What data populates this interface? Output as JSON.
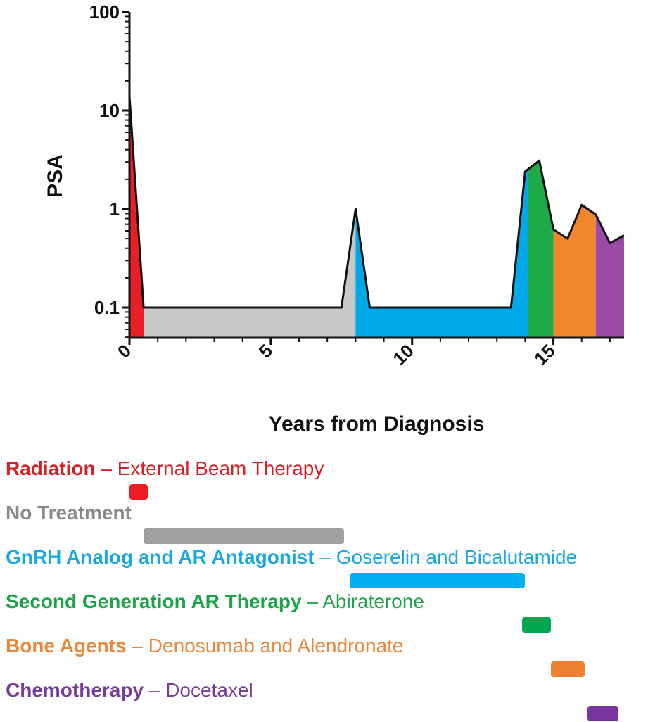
{
  "chart_data": {
    "type": "area",
    "title": "",
    "xlabel": "Years from Diagnosis",
    "ylabel": "PSA",
    "yscale": "log",
    "xlim": [
      0,
      17.5
    ],
    "ylim": [
      0.05,
      100
    ],
    "xticks": [
      0,
      5,
      10,
      15
    ],
    "xtick_labels": [
      "0",
      "5",
      "10",
      "15"
    ],
    "yticks": [
      0.1,
      1,
      10,
      100
    ],
    "ytick_labels": [
      "0.1",
      "1",
      "10",
      "100"
    ],
    "grid": false,
    "psa_series": [
      [
        0,
        14
      ],
      [
        0.5,
        0.1
      ],
      [
        7.5,
        0.1
      ],
      [
        8,
        1.0
      ],
      [
        8.5,
        0.1
      ],
      [
        13.5,
        0.1
      ],
      [
        14,
        2.4
      ],
      [
        14.5,
        3.1
      ],
      [
        15,
        0.62
      ],
      [
        15.5,
        0.5
      ],
      [
        16,
        1.1
      ],
      [
        16.5,
        0.88
      ],
      [
        17,
        0.45
      ],
      [
        17.5,
        0.54
      ]
    ],
    "segments": [
      {
        "name": "Radiation",
        "color": "#e62026",
        "x": [
          0,
          0.5
        ]
      },
      {
        "name": "No Treatment",
        "color": "#c8c8c8",
        "x": [
          0.5,
          8
        ]
      },
      {
        "name": "GnRH Analog and AR Antagonist",
        "color": "#00a8e8",
        "x": [
          8,
          14.1
        ]
      },
      {
        "name": "Second Generation AR Therapy",
        "color": "#1faa4a",
        "x": [
          14.1,
          15
        ]
      },
      {
        "name": "Bone Agents",
        "color": "#f0862e",
        "x": [
          15,
          16.5
        ]
      },
      {
        "name": "Chemotherapy",
        "color": "#9b4aa6",
        "x": [
          16.5,
          17.5
        ]
      }
    ]
  },
  "legend": [
    {
      "name": "Radiation",
      "sep": " – ",
      "detail": "External Beam Therapy",
      "color": "#d42027",
      "bar_color": "#ee1c24",
      "start": 0.0,
      "end": 0.5
    },
    {
      "name": "No Treatment",
      "sep": "",
      "detail": "",
      "color": "#8a8a8a",
      "bar_color": "#a0a0a0",
      "start": 0.5,
      "end": 7.6
    },
    {
      "name": "GnRH Analog and AR Antagonist",
      "sep": " – ",
      "detail": "Goserelin and Bicalutamide",
      "color": "#1ba7e0",
      "bar_color": "#00b0f0",
      "start": 7.8,
      "end": 14.0
    },
    {
      "name": "Second Generation AR Therapy",
      "sep": " – ",
      "detail": "Abiraterone",
      "color": "#1fa34a",
      "bar_color": "#00a650",
      "start": 13.9,
      "end": 14.9
    },
    {
      "name": "Bone Agents",
      "sep": " – ",
      "detail": "Denosumab and Alendronate",
      "color": "#e8883a",
      "bar_color": "#ee8130",
      "start": 14.9,
      "end": 16.1
    },
    {
      "name": "Chemotherapy",
      "sep": " – ",
      "detail": "Docetaxel",
      "color": "#7a3c9a",
      "bar_color": "#7b35a0",
      "start": 16.2,
      "end": 17.3
    }
  ]
}
